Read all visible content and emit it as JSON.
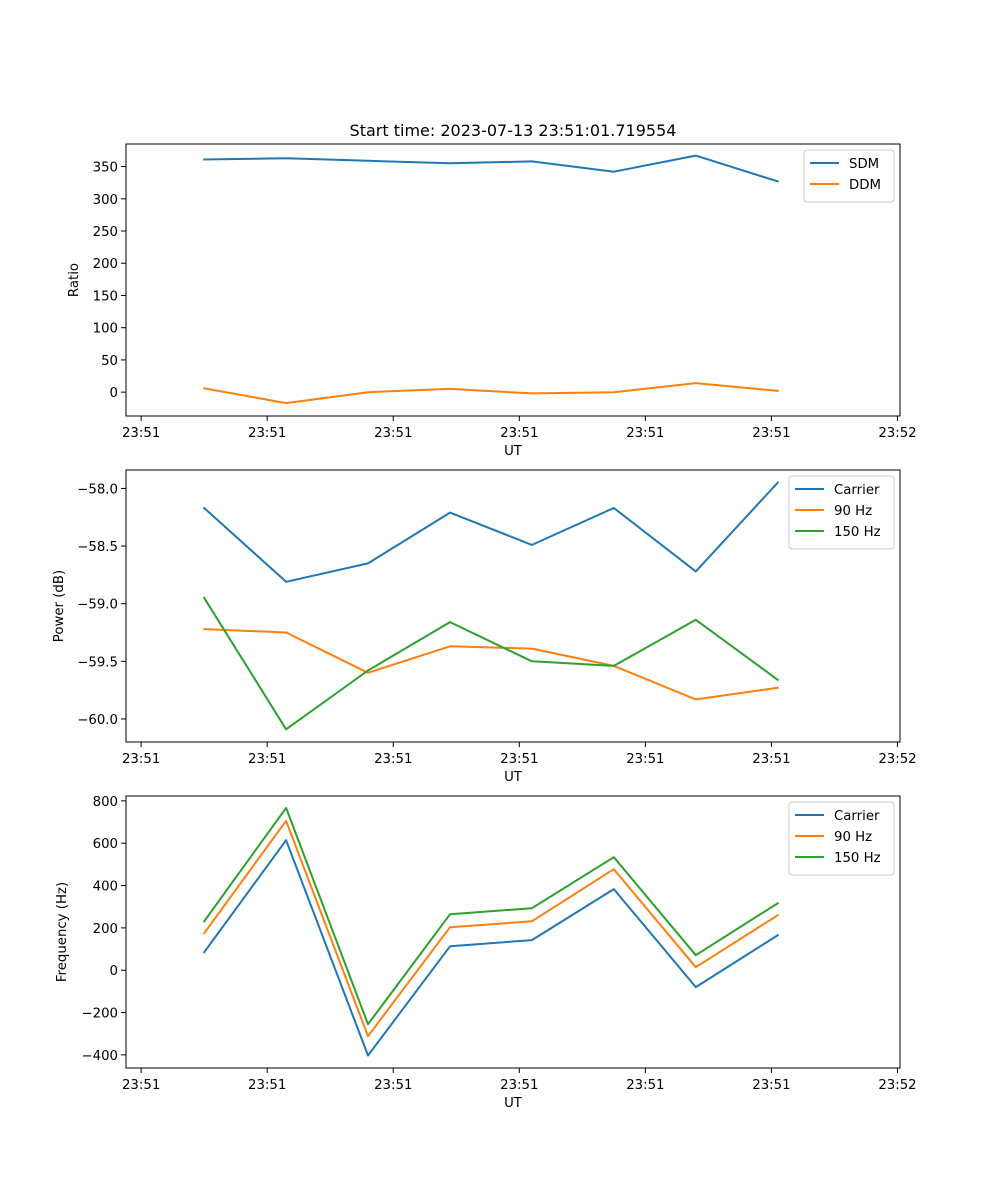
{
  "figure": {
    "title": "Start time: 2023-07-13 23:51:01.719554"
  },
  "chart_data": [
    {
      "type": "line",
      "title": "Start time: 2023-07-13 23:51:01.719554",
      "xlabel": "UT",
      "ylabel": "Ratio",
      "x_tick_labels": [
        "23:51",
        "23:51",
        "23:51",
        "23:51",
        "23:51",
        "23:51",
        "23:52"
      ],
      "x_points": [
        0.5,
        1.15,
        1.8,
        2.45,
        3.1,
        3.75,
        4.4,
        5.05
      ],
      "xlim": [
        -0.12,
        6.02
      ],
      "ylim": [
        -37,
        385
      ],
      "y_ticks": [
        0,
        50,
        100,
        150,
        200,
        250,
        300,
        350
      ],
      "y_tick_labels": [
        "0",
        "50",
        "100",
        "150",
        "200",
        "250",
        "300",
        "350"
      ],
      "grid": false,
      "legend_position": "top-right",
      "series": [
        {
          "name": "SDM",
          "color": "#1f77b4",
          "values": [
            361,
            363,
            359,
            355,
            358,
            342,
            367,
            327
          ]
        },
        {
          "name": "DDM",
          "color": "#ff7f0e",
          "values": [
            6,
            -17,
            0,
            5,
            -2,
            0,
            14,
            2
          ]
        }
      ]
    },
    {
      "type": "line",
      "title": "",
      "xlabel": "UT",
      "ylabel": "Power (dB)",
      "x_tick_labels": [
        "23:51",
        "23:51",
        "23:51",
        "23:51",
        "23:51",
        "23:51",
        "23:52"
      ],
      "x_points": [
        0.5,
        1.15,
        1.8,
        2.45,
        3.1,
        3.75,
        4.4,
        5.05
      ],
      "xlim": [
        -0.12,
        6.02
      ],
      "ylim": [
        -60.2,
        -57.84
      ],
      "y_ticks": [
        -60.0,
        -59.5,
        -59.0,
        -58.5,
        -58.0
      ],
      "y_tick_labels": [
        "−60.0",
        "−59.5",
        "−59.0",
        "−58.5",
        "−58.0"
      ],
      "grid": false,
      "legend_position": "top-right",
      "series": [
        {
          "name": "Carrier",
          "color": "#1f77b4",
          "values": [
            -58.17,
            -58.81,
            -58.65,
            -58.21,
            -58.49,
            -58.17,
            -58.72,
            -57.95
          ]
        },
        {
          "name": "90 Hz",
          "color": "#ff7f0e",
          "values": [
            -59.22,
            -59.25,
            -59.6,
            -59.37,
            -59.39,
            -59.54,
            -59.83,
            -59.73
          ]
        },
        {
          "name": "150 Hz",
          "color": "#2ca02c",
          "values": [
            -58.95,
            -60.09,
            -59.58,
            -59.16,
            -59.5,
            -59.54,
            -59.14,
            -59.66
          ]
        }
      ]
    },
    {
      "type": "line",
      "title": "",
      "xlabel": "UT",
      "ylabel": "Frequency (Hz)",
      "x_tick_labels": [
        "23:51",
        "23:51",
        "23:51",
        "23:51",
        "23:51",
        "23:51",
        "23:52"
      ],
      "x_points": [
        0.5,
        1.15,
        1.8,
        2.45,
        3.1,
        3.75,
        4.4,
        5.05
      ],
      "xlim": [
        -0.12,
        6.02
      ],
      "ylim": [
        -462,
        823
      ],
      "y_ticks": [
        -400,
        -200,
        0,
        200,
        400,
        600,
        800
      ],
      "y_tick_labels": [
        "−400",
        "−200",
        "0",
        "200",
        "400",
        "600",
        "800"
      ],
      "grid": false,
      "legend_position": "top-right",
      "series": [
        {
          "name": "Carrier",
          "color": "#1f77b4",
          "values": [
            85,
            614,
            -403,
            113,
            142,
            383,
            -80,
            165
          ]
        },
        {
          "name": "90 Hz",
          "color": "#ff7f0e",
          "values": [
            175,
            706,
            -312,
            203,
            231,
            477,
            14,
            260
          ]
        },
        {
          "name": "150 Hz",
          "color": "#2ca02c",
          "values": [
            231,
            767,
            -255,
            264,
            293,
            534,
            71,
            316
          ]
        }
      ]
    }
  ]
}
